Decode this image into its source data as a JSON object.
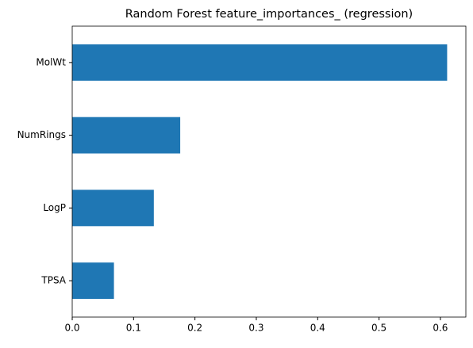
{
  "chart_data": {
    "type": "barh",
    "title": "Random Forest feature_importances_ (regression)",
    "categories": [
      "MolWt",
      "NumRings",
      "LogP",
      "TPSA"
    ],
    "values": [
      0.611,
      0.176,
      0.133,
      0.068
    ],
    "color": "#1f77b4",
    "xlim": [
      0,
      0.6415
    ],
    "xticks": [
      {
        "value": 0,
        "label": "0.0"
      },
      0.1,
      0.2,
      0.3,
      0.4,
      0.5,
      0.6
    ],
    "grid": false
  }
}
